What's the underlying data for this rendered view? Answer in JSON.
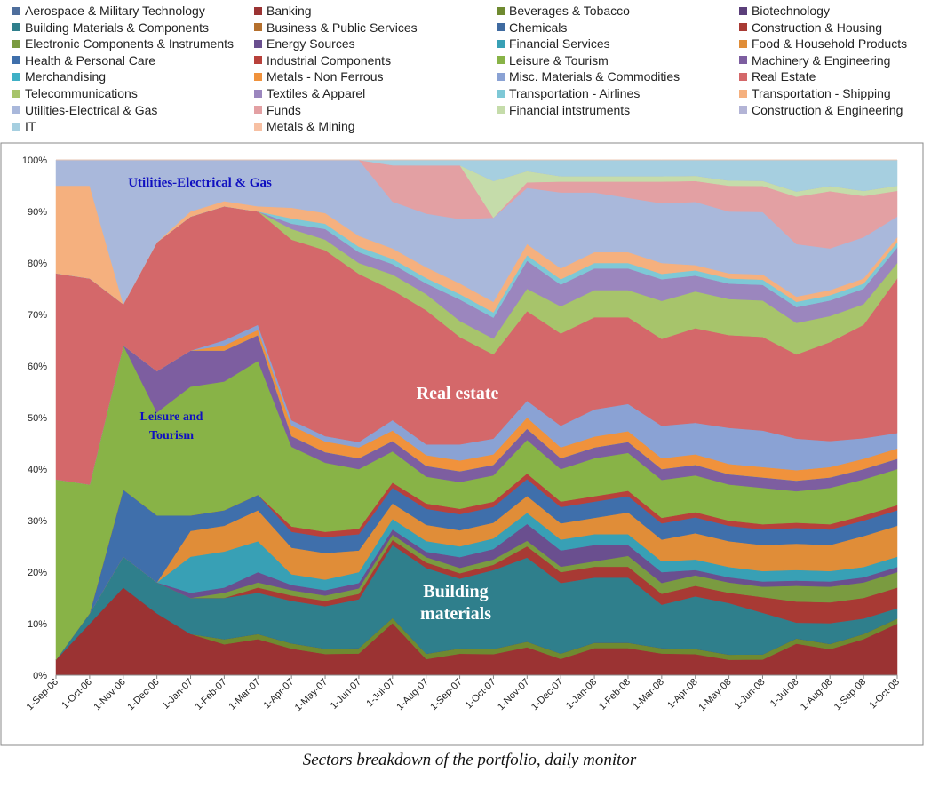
{
  "caption": "Sectors breakdown of the portfolio, daily monitor",
  "chart_data": {
    "type": "area",
    "stacked": "percent",
    "ylim": [
      0,
      100
    ],
    "yticks": [
      "0%",
      "10%",
      "20%",
      "30%",
      "40%",
      "50%",
      "60%",
      "70%",
      "80%",
      "90%",
      "100%"
    ],
    "xticks": [
      "1-Sep-06",
      "1-Oct-06",
      "1-Nov-06",
      "1-Dec-06",
      "1-Jan-07",
      "1-Feb-07",
      "1-Mar-07",
      "1-Apr-07",
      "1-May-07",
      "1-Jun-07",
      "1-Jul-07",
      "1-Aug-07",
      "1-Sep-07",
      "1-Oct-07",
      "1-Nov-07",
      "1-Dec-07",
      "1-Jan-08",
      "1-Feb-08",
      "1-Mar-08",
      "1-Apr-08",
      "1-May-08",
      "1-Jun-08",
      "1-Jul-08",
      "1-Aug-08",
      "1-Sep-08",
      "1-Oct-08"
    ],
    "grid": false,
    "legend_position": "top",
    "annotations": [
      {
        "text": "Utilities-Electrical & Gas",
        "color": "#1010c0"
      },
      {
        "text": "Leisure and",
        "color": "#1010c0"
      },
      {
        "text": "Tourism",
        "color": "#1010c0"
      },
      {
        "text": "Real estate",
        "color": "#ffffff"
      },
      {
        "text": "Building",
        "color": "#ffffff"
      },
      {
        "text": "materials",
        "color": "#ffffff"
      }
    ],
    "series": [
      {
        "name": "Aerospace & Military Technology",
        "color": "#4e6e9c",
        "values": [
          0,
          0,
          0,
          0,
          0,
          0,
          0,
          0,
          0,
          0,
          0,
          0,
          0,
          0,
          0,
          0,
          0,
          0,
          0,
          0,
          0,
          0,
          0,
          0,
          0,
          0
        ]
      },
      {
        "name": "Banking",
        "color": "#9b3333",
        "values": [
          3,
          10,
          17,
          12,
          8,
          6,
          7,
          5,
          4,
          4,
          10,
          3,
          4,
          4,
          5,
          3,
          5,
          5,
          4,
          4,
          3,
          3,
          6,
          5,
          7,
          10
        ]
      },
      {
        "name": "Beverages & Tobacco",
        "color": "#6f8a30",
        "values": [
          0,
          0,
          0,
          0,
          0,
          1,
          1,
          1,
          1,
          1,
          1,
          1,
          1,
          1,
          1,
          1,
          1,
          1,
          1,
          1,
          1,
          1,
          1,
          1,
          1,
          1
        ]
      },
      {
        "name": "Biotechnology",
        "color": "#5b3f7a",
        "values": [
          0,
          0,
          0,
          0,
          0,
          0,
          0,
          0,
          0,
          0,
          0,
          0,
          0,
          0,
          0,
          0,
          0,
          0,
          0,
          0,
          0,
          0,
          0,
          0,
          0,
          0
        ]
      },
      {
        "name": "Building Materials & Components",
        "color": "#2f7f8c",
        "values": [
          0,
          2,
          6,
          6,
          7,
          8,
          8,
          8,
          8,
          9,
          14,
          16,
          13,
          15,
          15,
          13,
          12,
          12,
          8,
          10,
          10,
          8,
          3,
          4,
          3,
          2
        ]
      },
      {
        "name": "Business & Public Services",
        "color": "#b5702d",
        "values": [
          0,
          0,
          0,
          0,
          0,
          0,
          0,
          0,
          0,
          0,
          0,
          0,
          0,
          0,
          0,
          0,
          0,
          0,
          0,
          0,
          0,
          0,
          0,
          0,
          0,
          0
        ]
      },
      {
        "name": "Chemicals",
        "color": "#3f6aa0",
        "values": [
          0,
          0,
          0,
          0,
          0,
          0,
          0,
          0,
          0,
          0,
          0,
          0,
          0,
          0,
          0,
          0,
          0,
          0,
          0,
          0,
          0,
          0,
          0,
          0,
          0,
          0
        ]
      },
      {
        "name": "Construction & Housing",
        "color": "#a83a34",
        "values": [
          0,
          0,
          0,
          0,
          0,
          0,
          1,
          1,
          1,
          1,
          1,
          1,
          1,
          1,
          2,
          2,
          2,
          2,
          2,
          2,
          2,
          3,
          4,
          4,
          4,
          4
        ]
      },
      {
        "name": "Electronic Components & Instruments",
        "color": "#7a9b40",
        "values": [
          0,
          0,
          0,
          0,
          0,
          1,
          1,
          1,
          1,
          1,
          1,
          1,
          1,
          1,
          1,
          1,
          1,
          2,
          2,
          2,
          2,
          2,
          3,
          3,
          3,
          3
        ]
      },
      {
        "name": "Energy Sources",
        "color": "#6a4f8f",
        "values": [
          0,
          0,
          0,
          0,
          1,
          1,
          2,
          1,
          1,
          1,
          1,
          1,
          2,
          2,
          3,
          3,
          3,
          2,
          2,
          1,
          1,
          1,
          1,
          1,
          1,
          1
        ]
      },
      {
        "name": "Financial Services",
        "color": "#38a0b5",
        "values": [
          0,
          0,
          0,
          0,
          7,
          7,
          6,
          2,
          2,
          2,
          2,
          2,
          2,
          2,
          2,
          2,
          2,
          2,
          2,
          2,
          2,
          2,
          2,
          2,
          2,
          2
        ]
      },
      {
        "name": "Food & Household Products",
        "color": "#e08d38",
        "values": [
          0,
          0,
          0,
          0,
          5,
          5,
          6,
          5,
          5,
          4,
          3,
          3,
          3,
          3,
          3,
          3,
          3,
          4,
          4,
          5,
          5,
          5,
          5,
          5,
          6,
          6
        ]
      },
      {
        "name": "Health & Personal Care",
        "color": "#3f6fab",
        "values": [
          0,
          0,
          13,
          13,
          3,
          3,
          3,
          3,
          3,
          3,
          3,
          3,
          3,
          3,
          3,
          3,
          3,
          3,
          3,
          3,
          3,
          3,
          3,
          3,
          3,
          3
        ]
      },
      {
        "name": "Industrial Components",
        "color": "#b8413b",
        "values": [
          0,
          0,
          0,
          0,
          0,
          0,
          0,
          1,
          1,
          1,
          1,
          1,
          1,
          1,
          1,
          1,
          1,
          1,
          1,
          1,
          1,
          1,
          1,
          1,
          1,
          1
        ]
      },
      {
        "name": "Leisure & Tourism",
        "color": "#88b347",
        "values": [
          35,
          25,
          28,
          20,
          25,
          25,
          26,
          15,
          13,
          11,
          6,
          5,
          5,
          5,
          6,
          6,
          7,
          7,
          7,
          7,
          7,
          7,
          6,
          7,
          7,
          7
        ]
      },
      {
        "name": "Machinery & Engineering",
        "color": "#7d5ea0",
        "values": [
          0,
          0,
          0,
          8,
          7,
          6,
          5,
          2,
          2,
          2,
          2,
          2,
          2,
          2,
          2,
          2,
          2,
          2,
          2,
          2,
          2,
          2,
          2,
          2,
          2,
          2
        ]
      },
      {
        "name": "Merchandising",
        "color": "#3fb0c6",
        "values": [
          0,
          0,
          0,
          0,
          0,
          0,
          0,
          0,
          0,
          0,
          0,
          0,
          0,
          0,
          0,
          0,
          0,
          0,
          0,
          0,
          0,
          0,
          0,
          0,
          0,
          0
        ]
      },
      {
        "name": "Metals - Non Ferrous",
        "color": "#f0923c",
        "values": [
          0,
          0,
          0,
          0,
          0,
          1,
          1,
          2,
          2,
          2,
          2,
          2,
          2,
          2,
          2,
          2,
          2,
          2,
          2,
          2,
          2,
          2,
          2,
          2,
          2,
          2
        ]
      },
      {
        "name": "Misc. Materials & Commodities",
        "color": "#8aa2d4",
        "values": [
          0,
          0,
          0,
          0,
          0,
          1,
          1,
          1,
          1,
          1,
          2,
          2,
          3,
          3,
          3,
          4,
          5,
          5,
          6,
          6,
          7,
          7,
          6,
          5,
          4,
          3
        ]
      },
      {
        "name": "Real Estate",
        "color": "#d4686a",
        "values": [
          40,
          40,
          8,
          25,
          26,
          26,
          22,
          34,
          35,
          31,
          25,
          25,
          20,
          16,
          16,
          17,
          17,
          16,
          16,
          18,
          18,
          18,
          16,
          19,
          22,
          30
        ]
      },
      {
        "name": "Telecommunications",
        "color": "#a7c46b",
        "values": [
          0,
          0,
          0,
          0,
          0,
          0,
          0,
          2,
          2,
          2,
          3,
          3,
          3,
          3,
          4,
          5,
          5,
          5,
          7,
          7,
          7,
          7,
          6,
          5,
          4,
          3
        ]
      },
      {
        "name": "Textiles & Apparel",
        "color": "#9b86be",
        "values": [
          0,
          0,
          0,
          0,
          0,
          0,
          0,
          1,
          2,
          2,
          2,
          2,
          4,
          4,
          5,
          4,
          4,
          4,
          4,
          3,
          3,
          3,
          3,
          3,
          3,
          3
        ]
      },
      {
        "name": "Transportation - Airlines",
        "color": "#7ec8d6",
        "values": [
          0,
          0,
          0,
          0,
          0,
          0,
          0,
          1,
          1,
          1,
          1,
          1,
          1,
          1,
          1,
          1,
          1,
          1,
          1,
          1,
          1,
          1,
          1,
          1,
          1,
          1
        ]
      },
      {
        "name": "Transportation - Shipping",
        "color": "#f5b07e",
        "values": [
          17,
          18,
          0,
          0,
          1,
          1,
          1,
          2,
          2,
          2,
          2,
          2,
          2,
          2,
          2,
          2,
          2,
          2,
          2,
          1,
          1,
          1,
          1,
          1,
          1,
          1
        ]
      },
      {
        "name": "Utilities-Electrical & Gas",
        "color": "#a9b8db",
        "values": [
          5,
          5,
          28,
          16,
          10,
          8,
          9,
          9,
          10,
          14,
          9,
          10,
          12,
          16,
          10,
          14,
          11,
          10,
          11,
          12,
          12,
          12,
          10,
          8,
          8,
          4
        ]
      },
      {
        "name": "Funds",
        "color": "#e3a0a3",
        "values": [
          0,
          0,
          0,
          0,
          0,
          0,
          0,
          0,
          0,
          0,
          7,
          9,
          10,
          0,
          1,
          2,
          2,
          3,
          4,
          4,
          5,
          5,
          9,
          11,
          8,
          5
        ]
      },
      {
        "name": "Financial intstruments",
        "color": "#c5dcaa",
        "values": [
          0,
          0,
          0,
          0,
          0,
          0,
          0,
          0,
          0,
          0,
          0,
          0,
          0,
          7,
          2,
          1,
          1,
          1,
          1,
          1,
          1,
          1,
          1,
          1,
          1,
          1
        ]
      },
      {
        "name": "Construction & Engineering",
        "color": "#b3b4d6",
        "values": [
          0,
          0,
          0,
          0,
          0,
          0,
          0,
          0,
          0,
          0,
          0,
          0,
          0,
          0,
          0,
          0,
          0,
          0,
          0,
          0,
          0,
          0,
          0,
          0,
          0,
          0
        ]
      },
      {
        "name": "IT",
        "color": "#a6cfe0",
        "values": [
          0,
          0,
          0,
          0,
          0,
          0,
          0,
          0,
          0,
          0,
          1,
          1,
          1,
          4,
          2,
          3,
          3,
          3,
          3,
          3,
          4,
          4,
          6,
          5,
          6,
          5
        ]
      },
      {
        "name": "Metals & Mining",
        "color": "#f7c0a3",
        "values": [
          0,
          0,
          0,
          0,
          0,
          0,
          0,
          0,
          0,
          0,
          0,
          0,
          0,
          0,
          0,
          0,
          0,
          0,
          0,
          0,
          0,
          0,
          0,
          0,
          0,
          0
        ]
      }
    ]
  }
}
